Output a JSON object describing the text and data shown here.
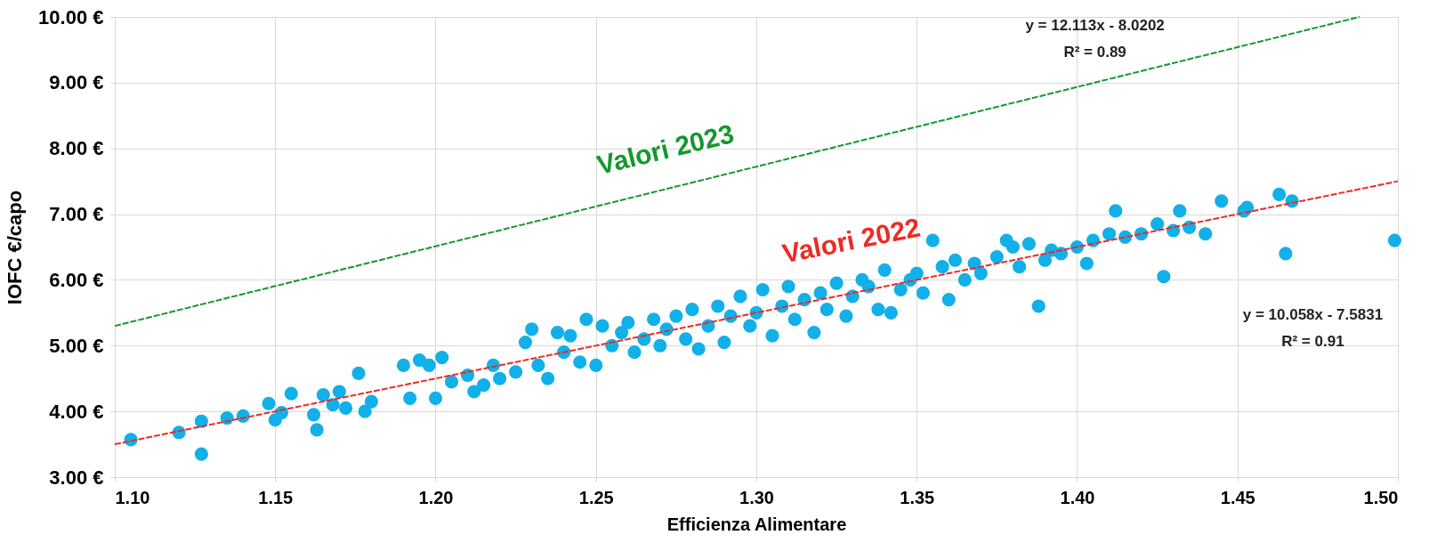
{
  "chart_data": {
    "type": "scatter",
    "xlabel": "Efficienza Alimentare",
    "ylabel": "IOFC €/capo",
    "xlim": [
      1.1,
      1.5
    ],
    "ylim": [
      3.0,
      10.0
    ],
    "xticks": [
      {
        "value": 1.1,
        "label": "1.10"
      },
      {
        "value": 1.15,
        "label": "1.15"
      },
      {
        "value": 1.2,
        "label": "1.20"
      },
      {
        "value": 1.25,
        "label": "1.25"
      },
      {
        "value": 1.3,
        "label": "1.30"
      },
      {
        "value": 1.35,
        "label": "1.35"
      },
      {
        "value": 1.4,
        "label": "1.40"
      },
      {
        "value": 1.45,
        "label": "1.45"
      },
      {
        "value": 1.5,
        "label": "1.50"
      }
    ],
    "yticks": [
      {
        "value": 3,
        "label": "3.00 €"
      },
      {
        "value": 4,
        "label": "4.00 €"
      },
      {
        "value": 5,
        "label": "5.00 €"
      },
      {
        "value": 6,
        "label": "6.00 €"
      },
      {
        "value": 7,
        "label": "7.00 €"
      },
      {
        "value": 8,
        "label": "8.00 €"
      },
      {
        "value": 9,
        "label": "9.00 €"
      },
      {
        "value": 10,
        "label": "10.00 €"
      }
    ],
    "grid": true,
    "series": [
      {
        "marker": "circle",
        "color": "#12b0e8",
        "x": [
          1.105,
          1.12,
          1.127,
          1.127,
          1.135,
          1.14,
          1.148,
          1.15,
          1.152,
          1.155,
          1.162,
          1.163,
          1.165,
          1.168,
          1.17,
          1.172,
          1.176,
          1.178,
          1.18,
          1.19,
          1.192,
          1.195,
          1.198,
          1.2,
          1.202,
          1.205,
          1.21,
          1.212,
          1.215,
          1.218,
          1.22,
          1.225,
          1.228,
          1.23,
          1.232,
          1.235,
          1.238,
          1.24,
          1.242,
          1.245,
          1.247,
          1.25,
          1.252,
          1.255,
          1.258,
          1.26,
          1.262,
          1.265,
          1.268,
          1.27,
          1.272,
          1.275,
          1.278,
          1.28,
          1.282,
          1.285,
          1.288,
          1.29,
          1.292,
          1.295,
          1.298,
          1.3,
          1.302,
          1.305,
          1.308,
          1.31,
          1.312,
          1.315,
          1.318,
          1.32,
          1.322,
          1.325,
          1.328,
          1.33,
          1.333,
          1.335,
          1.338,
          1.34,
          1.342,
          1.345,
          1.348,
          1.35,
          1.352,
          1.355,
          1.358,
          1.36,
          1.362,
          1.365,
          1.368,
          1.37,
          1.375,
          1.378,
          1.38,
          1.382,
          1.385,
          1.388,
          1.39,
          1.392,
          1.395,
          1.4,
          1.403,
          1.405,
          1.41,
          1.412,
          1.415,
          1.42,
          1.425,
          1.427,
          1.43,
          1.432,
          1.435,
          1.44,
          1.445,
          1.452,
          1.453,
          1.463,
          1.465,
          1.467,
          1.499
        ],
        "values": [
          3.57,
          3.68,
          3.35,
          3.85,
          3.9,
          3.93,
          4.12,
          3.87,
          3.98,
          4.27,
          3.95,
          3.72,
          4.25,
          4.1,
          4.3,
          4.05,
          4.58,
          4.0,
          4.15,
          4.7,
          4.2,
          4.78,
          4.7,
          4.2,
          4.82,
          4.45,
          4.55,
          4.3,
          4.4,
          4.7,
          4.5,
          4.6,
          5.05,
          5.25,
          4.7,
          4.5,
          5.2,
          4.9,
          5.15,
          4.75,
          5.4,
          4.7,
          5.3,
          5.0,
          5.2,
          5.35,
          4.9,
          5.1,
          5.4,
          5.0,
          5.25,
          5.45,
          5.1,
          5.55,
          4.95,
          5.3,
          5.6,
          5.05,
          5.45,
          5.75,
          5.3,
          5.5,
          5.85,
          5.15,
          5.6,
          5.9,
          5.4,
          5.7,
          5.2,
          5.8,
          5.55,
          5.95,
          5.45,
          5.75,
          6.0,
          5.9,
          5.55,
          6.15,
          5.5,
          5.85,
          6.0,
          6.1,
          5.8,
          6.6,
          6.2,
          5.7,
          6.3,
          6.0,
          6.25,
          6.1,
          6.35,
          6.6,
          6.5,
          6.2,
          6.55,
          5.6,
          6.3,
          6.45,
          6.4,
          6.5,
          6.25,
          6.6,
          6.7,
          7.05,
          6.65,
          6.7,
          6.85,
          6.05,
          6.75,
          7.05,
          6.8,
          6.7,
          7.2,
          7.05,
          7.1,
          7.3,
          6.4,
          7.2,
          6.6
        ]
      },
      {
        "type": "line",
        "marker": "none",
        "line_style": "dashed",
        "color": "#ee2a24",
        "x": [
          1.1,
          1.5
        ],
        "values": [
          3.5,
          7.5
        ]
      },
      {
        "type": "line",
        "marker": "none",
        "line_style": "dashed",
        "color": "#15982f",
        "x": [
          1.1,
          1.488
        ],
        "values": [
          5.3,
          10.0
        ]
      }
    ],
    "annotations": [
      "Valori 2023",
      "Valori 2022",
      "y = 12.113x - 8.0202",
      "R² = 0.89",
      "y = 10.058x - 7.5831",
      "R² = 0.91"
    ]
  }
}
